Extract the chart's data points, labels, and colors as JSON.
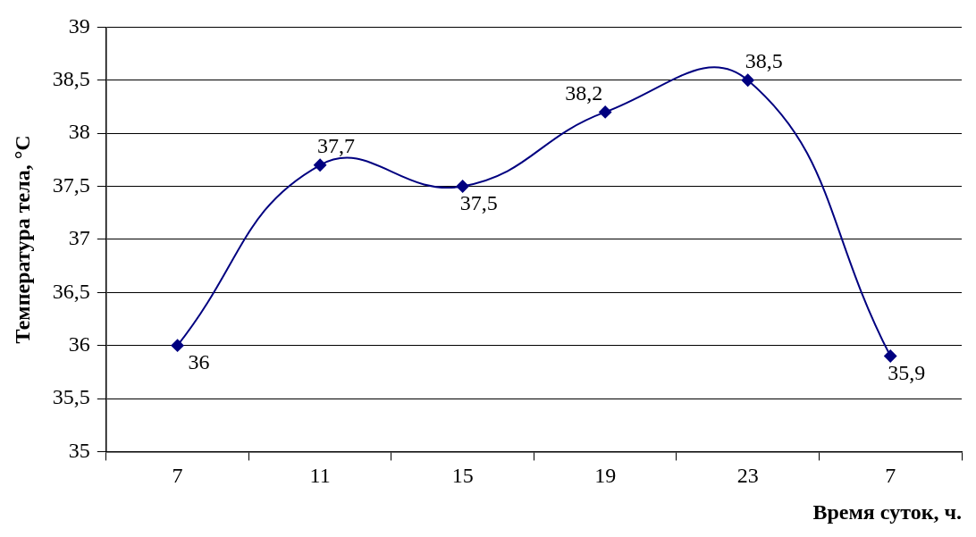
{
  "chart_data": {
    "type": "line",
    "xlabel": "Время суток, ч.",
    "ylabel": "Температура тела, °C",
    "categories": [
      "7",
      "11",
      "15",
      "19",
      "23",
      "7"
    ],
    "series": [
      {
        "color": "#000080",
        "values": [
          36,
          37.7,
          37.5,
          38.2,
          38.5,
          35.9
        ],
        "value_labels": [
          "36",
          "37,7",
          "37,5",
          "38,2",
          "38,5",
          "35,9"
        ]
      }
    ],
    "ylim": [
      35,
      39
    ],
    "yticks": [
      35,
      {
        "value": 35.5,
        "label": "35,5"
      },
      36,
      {
        "value": 36.5,
        "label": "36,5"
      },
      37,
      {
        "value": 37.5,
        "label": "37,5"
      },
      38,
      {
        "value": 38.5,
        "label": "38,5"
      },
      39
    ],
    "grid": "y",
    "legend": false,
    "marker": "diamond",
    "line_style": "solid"
  }
}
